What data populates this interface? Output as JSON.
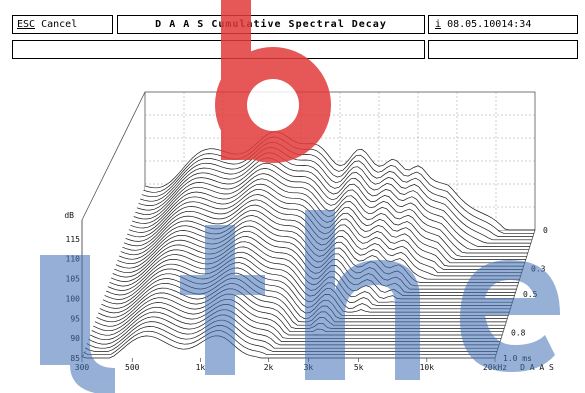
{
  "toolbar": {
    "esc_key": "ESC",
    "esc_label": "Cancel",
    "title": "D A A S  Cumulative Spectral Decay",
    "info_key": "i",
    "timestamp": "08.05.10014:34"
  },
  "chart_data": {
    "type": "waterfall",
    "ylabel": "dB",
    "y_ticks": [
      "115",
      "110",
      "105",
      "100",
      "95",
      "90",
      "85"
    ],
    "x_ticks": [
      "300",
      "500",
      "1k",
      "2k",
      "3k",
      "5k",
      "10k",
      "20kHz"
    ],
    "brand": "D A A S",
    "time_ticks": [
      "0",
      "0.3",
      "0.5",
      "0.8",
      "1.0 ms"
    ],
    "y_range_db": [
      85,
      118
    ],
    "x_range_hz": [
      300,
      20000
    ],
    "time_range_ms": [
      0,
      1.0
    ],
    "slices": 40,
    "grid": true
  },
  "colors": {
    "watermark_red": "#e23a3a",
    "watermark_blue": "#3f6fb5",
    "line": "#1a1a1a"
  }
}
